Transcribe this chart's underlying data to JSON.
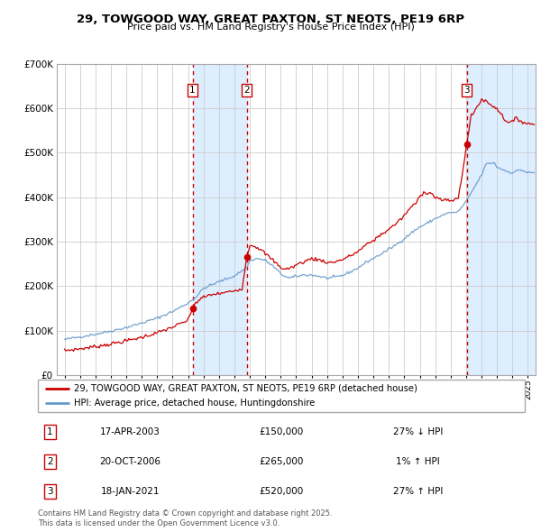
{
  "title": "29, TOWGOOD WAY, GREAT PAXTON, ST NEOTS, PE19 6RP",
  "subtitle": "Price paid vs. HM Land Registry's House Price Index (HPI)",
  "red_label": "29, TOWGOOD WAY, GREAT PAXTON, ST NEOTS, PE19 6RP (detached house)",
  "blue_label": "HPI: Average price, detached house, Huntingdonshire",
  "footer": "Contains HM Land Registry data © Crown copyright and database right 2025.\nThis data is licensed under the Open Government Licence v3.0.",
  "sales": [
    {
      "num": 1,
      "date": "17-APR-2003",
      "date_x": 2003.29,
      "price": 150000,
      "hpi_rel": "27% ↓ HPI"
    },
    {
      "num": 2,
      "date": "20-OCT-2006",
      "date_x": 2006.8,
      "price": 265000,
      "hpi_rel": "1% ↑ HPI"
    },
    {
      "num": 3,
      "date": "18-JAN-2021",
      "date_x": 2021.05,
      "price": 520000,
      "hpi_rel": "27% ↑ HPI"
    }
  ],
  "xlim": [
    1994.5,
    2025.5
  ],
  "ylim": [
    0,
    700000
  ],
  "yticks": [
    0,
    100000,
    200000,
    300000,
    400000,
    500000,
    600000,
    700000
  ],
  "ytick_labels": [
    "£0",
    "£100K",
    "£200K",
    "£300K",
    "£400K",
    "£500K",
    "£600K",
    "£700K"
  ],
  "xticks": [
    1995,
    1996,
    1997,
    1998,
    1999,
    2000,
    2001,
    2002,
    2003,
    2004,
    2005,
    2006,
    2007,
    2008,
    2009,
    2010,
    2011,
    2012,
    2013,
    2014,
    2015,
    2016,
    2017,
    2018,
    2019,
    2020,
    2021,
    2022,
    2023,
    2024,
    2025
  ],
  "red_color": "#cc0000",
  "blue_color": "#6699cc",
  "vline_color": "#cc0000",
  "shade_color": "#ddeeff",
  "grid_color": "#cccccc",
  "background_color": "#ffffff"
}
